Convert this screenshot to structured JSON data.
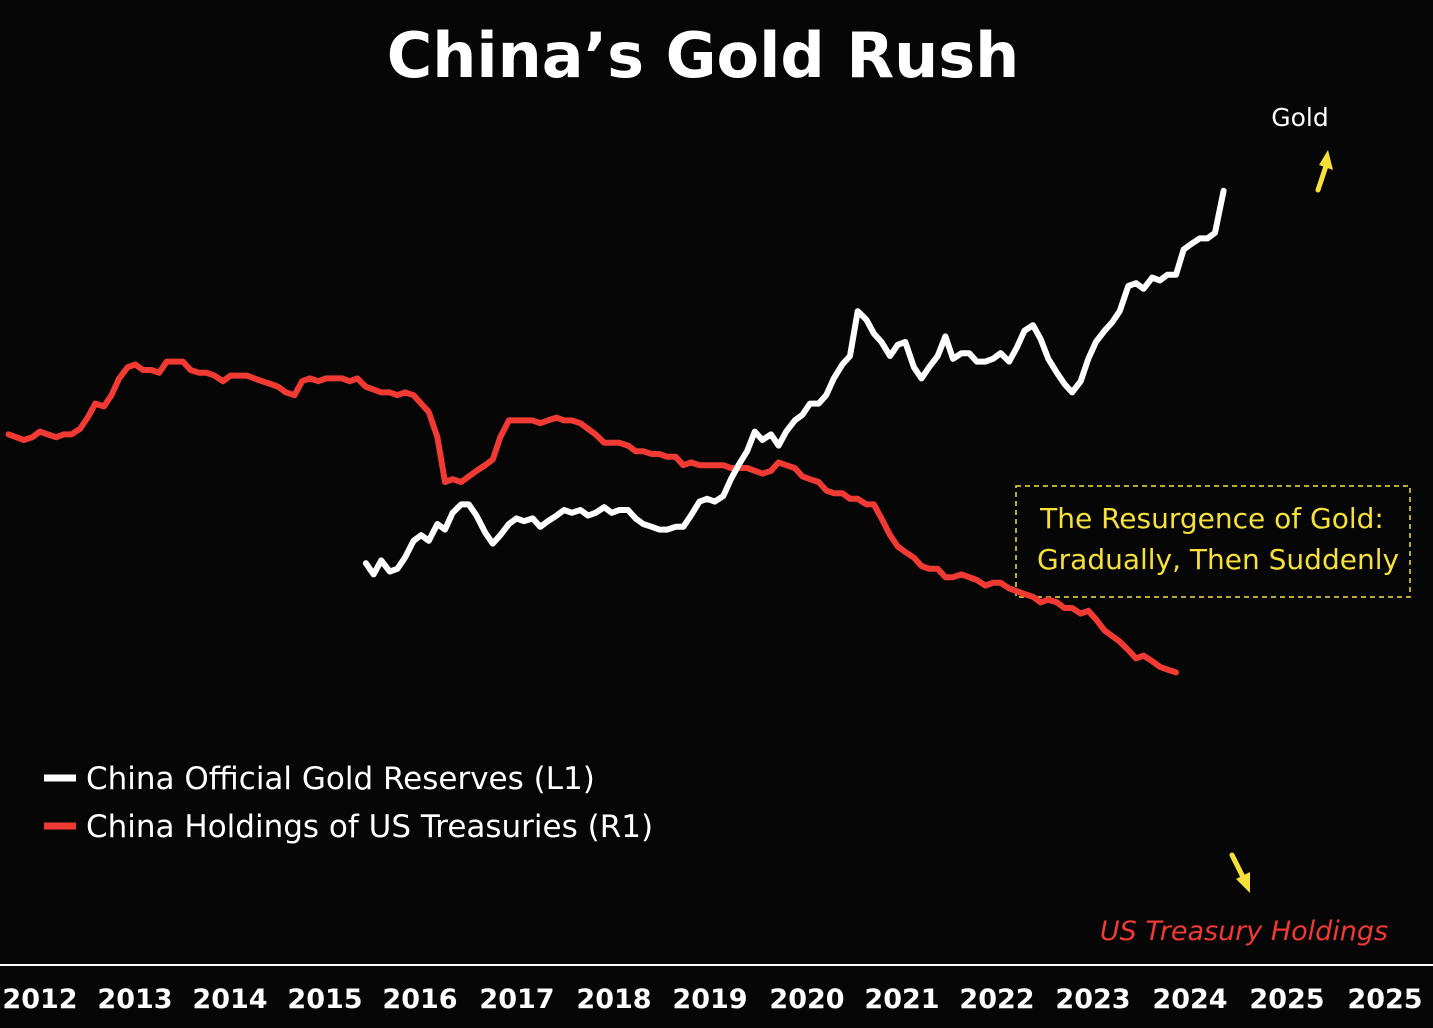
{
  "chart_data": {
    "type": "line",
    "title": "China’s Gold Rush",
    "x_tick_labels": [
      "2012",
      "2013",
      "2014",
      "2015",
      "2016",
      "2017",
      "2018",
      "2019",
      "2020",
      "2021",
      "2022",
      "2023",
      "2024",
      "2025",
      "2025"
    ],
    "xlim": [
      2011.6,
      2025.8
    ],
    "legend": {
      "placement": "bottom-left"
    },
    "grid": false,
    "colors": {
      "background": "#070607",
      "gold": "#ffffff",
      "treasuries": "#f03a33",
      "annotation": "#f5e13a"
    },
    "series": [
      {
        "name": "China Official Gold Reserves (L1)",
        "axis": "left",
        "color": "#ffffff",
        "points": [
          [
            2015.42,
            0.06
          ],
          [
            2015.5,
            0.02
          ],
          [
            2015.58,
            0.07
          ],
          [
            2015.67,
            0.03
          ],
          [
            2015.75,
            0.04
          ],
          [
            2015.83,
            0.08
          ],
          [
            2015.92,
            0.14
          ],
          [
            2016.0,
            0.16
          ],
          [
            2016.08,
            0.14
          ],
          [
            2016.17,
            0.2
          ],
          [
            2016.25,
            0.18
          ],
          [
            2016.33,
            0.24
          ],
          [
            2016.42,
            0.27
          ],
          [
            2016.5,
            0.27
          ],
          [
            2016.58,
            0.23
          ],
          [
            2016.67,
            0.17
          ],
          [
            2016.75,
            0.13
          ],
          [
            2016.83,
            0.16
          ],
          [
            2016.92,
            0.2
          ],
          [
            2017.0,
            0.22
          ],
          [
            2017.08,
            0.21
          ],
          [
            2017.17,
            0.22
          ],
          [
            2017.25,
            0.19
          ],
          [
            2017.33,
            0.21
          ],
          [
            2017.42,
            0.23
          ],
          [
            2017.5,
            0.25
          ],
          [
            2017.58,
            0.24
          ],
          [
            2017.67,
            0.25
          ],
          [
            2017.75,
            0.23
          ],
          [
            2017.83,
            0.24
          ],
          [
            2017.92,
            0.26
          ],
          [
            2018.0,
            0.24
          ],
          [
            2018.08,
            0.25
          ],
          [
            2018.17,
            0.25
          ],
          [
            2018.25,
            0.22
          ],
          [
            2018.33,
            0.2
          ],
          [
            2018.42,
            0.19
          ],
          [
            2018.5,
            0.18
          ],
          [
            2018.58,
            0.18
          ],
          [
            2018.67,
            0.19
          ],
          [
            2018.75,
            0.19
          ],
          [
            2018.83,
            0.23
          ],
          [
            2018.92,
            0.28
          ],
          [
            2019.0,
            0.29
          ],
          [
            2019.08,
            0.28
          ],
          [
            2019.17,
            0.3
          ],
          [
            2019.25,
            0.36
          ],
          [
            2019.33,
            0.41
          ],
          [
            2019.42,
            0.46
          ],
          [
            2019.5,
            0.53
          ],
          [
            2019.58,
            0.5
          ],
          [
            2019.67,
            0.52
          ],
          [
            2019.75,
            0.48
          ],
          [
            2019.83,
            0.53
          ],
          [
            2019.92,
            0.57
          ],
          [
            2020.0,
            0.59
          ],
          [
            2020.08,
            0.63
          ],
          [
            2020.17,
            0.63
          ],
          [
            2020.25,
            0.66
          ],
          [
            2020.33,
            0.72
          ],
          [
            2020.42,
            0.77
          ],
          [
            2020.5,
            0.8
          ],
          [
            2020.58,
            0.96
          ],
          [
            2020.67,
            0.93
          ],
          [
            2020.75,
            0.88
          ],
          [
            2020.83,
            0.85
          ],
          [
            2020.92,
            0.8
          ],
          [
            2021.0,
            0.84
          ],
          [
            2021.08,
            0.85
          ],
          [
            2021.17,
            0.76
          ],
          [
            2021.25,
            0.72
          ],
          [
            2021.33,
            0.76
          ],
          [
            2021.42,
            0.8
          ],
          [
            2021.5,
            0.87
          ],
          [
            2021.58,
            0.79
          ],
          [
            2021.67,
            0.81
          ],
          [
            2021.75,
            0.81
          ],
          [
            2021.83,
            0.78
          ],
          [
            2021.92,
            0.78
          ],
          [
            2022.0,
            0.79
          ],
          [
            2022.08,
            0.81
          ],
          [
            2022.17,
            0.78
          ],
          [
            2022.25,
            0.83
          ],
          [
            2022.33,
            0.89
          ],
          [
            2022.42,
            0.91
          ],
          [
            2022.5,
            0.86
          ],
          [
            2022.58,
            0.79
          ],
          [
            2022.67,
            0.74
          ],
          [
            2022.75,
            0.7
          ],
          [
            2022.83,
            0.67
          ],
          [
            2022.92,
            0.71
          ],
          [
            2023.0,
            0.79
          ],
          [
            2023.08,
            0.85
          ],
          [
            2023.17,
            0.89
          ],
          [
            2023.25,
            0.92
          ],
          [
            2023.33,
            0.96
          ],
          [
            2023.42,
            1.05
          ],
          [
            2023.5,
            1.06
          ],
          [
            2023.58,
            1.04
          ],
          [
            2023.67,
            1.08
          ],
          [
            2023.75,
            1.07
          ],
          [
            2023.83,
            1.09
          ],
          [
            2023.92,
            1.09
          ],
          [
            2024.0,
            1.18
          ],
          [
            2024.08,
            1.2
          ],
          [
            2024.17,
            1.22
          ],
          [
            2024.25,
            1.22
          ],
          [
            2024.33,
            1.24
          ],
          [
            2024.42,
            1.39
          ]
        ]
      },
      {
        "name": "China Holdings of US Treasuries (R1)",
        "axis": "right",
        "color": "#f03a33",
        "points": [
          [
            2011.67,
            0.52
          ],
          [
            2011.75,
            0.51
          ],
          [
            2011.83,
            0.5
          ],
          [
            2011.92,
            0.51
          ],
          [
            2012.0,
            0.53
          ],
          [
            2012.08,
            0.52
          ],
          [
            2012.17,
            0.51
          ],
          [
            2012.25,
            0.52
          ],
          [
            2012.33,
            0.52
          ],
          [
            2012.42,
            0.54
          ],
          [
            2012.5,
            0.58
          ],
          [
            2012.58,
            0.63
          ],
          [
            2012.67,
            0.62
          ],
          [
            2012.75,
            0.66
          ],
          [
            2012.83,
            0.72
          ],
          [
            2012.92,
            0.76
          ],
          [
            2013.0,
            0.77
          ],
          [
            2013.08,
            0.75
          ],
          [
            2013.17,
            0.75
          ],
          [
            2013.25,
            0.74
          ],
          [
            2013.33,
            0.78
          ],
          [
            2013.42,
            0.78
          ],
          [
            2013.5,
            0.78
          ],
          [
            2013.58,
            0.75
          ],
          [
            2013.67,
            0.74
          ],
          [
            2013.75,
            0.74
          ],
          [
            2013.83,
            0.73
          ],
          [
            2013.92,
            0.71
          ],
          [
            2014.0,
            0.73
          ],
          [
            2014.08,
            0.73
          ],
          [
            2014.17,
            0.73
          ],
          [
            2014.25,
            0.72
          ],
          [
            2014.33,
            0.71
          ],
          [
            2014.42,
            0.7
          ],
          [
            2014.5,
            0.69
          ],
          [
            2014.58,
            0.67
          ],
          [
            2014.67,
            0.66
          ],
          [
            2014.75,
            0.71
          ],
          [
            2014.83,
            0.72
          ],
          [
            2014.92,
            0.71
          ],
          [
            2015.0,
            0.72
          ],
          [
            2015.08,
            0.72
          ],
          [
            2015.17,
            0.72
          ],
          [
            2015.25,
            0.71
          ],
          [
            2015.33,
            0.72
          ],
          [
            2015.42,
            0.69
          ],
          [
            2015.5,
            0.68
          ],
          [
            2015.58,
            0.67
          ],
          [
            2015.67,
            0.67
          ],
          [
            2015.75,
            0.66
          ],
          [
            2015.83,
            0.67
          ],
          [
            2015.92,
            0.66
          ],
          [
            2016.0,
            0.63
          ],
          [
            2016.08,
            0.6
          ],
          [
            2016.17,
            0.51
          ],
          [
            2016.25,
            0.35
          ],
          [
            2016.33,
            0.36
          ],
          [
            2016.42,
            0.35
          ],
          [
            2016.5,
            0.37
          ],
          [
            2016.58,
            0.39
          ],
          [
            2016.67,
            0.41
          ],
          [
            2016.75,
            0.43
          ],
          [
            2016.83,
            0.51
          ],
          [
            2016.92,
            0.57
          ],
          [
            2017.0,
            0.57
          ],
          [
            2017.08,
            0.57
          ],
          [
            2017.17,
            0.57
          ],
          [
            2017.25,
            0.56
          ],
          [
            2017.33,
            0.57
          ],
          [
            2017.42,
            0.58
          ],
          [
            2017.5,
            0.57
          ],
          [
            2017.58,
            0.57
          ],
          [
            2017.67,
            0.56
          ],
          [
            2017.75,
            0.54
          ],
          [
            2017.83,
            0.52
          ],
          [
            2017.92,
            0.49
          ],
          [
            2018.0,
            0.49
          ],
          [
            2018.08,
            0.49
          ],
          [
            2018.17,
            0.48
          ],
          [
            2018.25,
            0.46
          ],
          [
            2018.33,
            0.46
          ],
          [
            2018.42,
            0.45
          ],
          [
            2018.5,
            0.45
          ],
          [
            2018.58,
            0.44
          ],
          [
            2018.67,
            0.44
          ],
          [
            2018.75,
            0.41
          ],
          [
            2018.83,
            0.42
          ],
          [
            2018.92,
            0.41
          ],
          [
            2019.0,
            0.41
          ],
          [
            2019.08,
            0.41
          ],
          [
            2019.17,
            0.41
          ],
          [
            2019.25,
            0.4
          ],
          [
            2019.33,
            0.4
          ],
          [
            2019.42,
            0.4
          ],
          [
            2019.5,
            0.39
          ],
          [
            2019.58,
            0.38
          ],
          [
            2019.67,
            0.39
          ],
          [
            2019.75,
            0.42
          ],
          [
            2019.83,
            0.41
          ],
          [
            2019.92,
            0.4
          ],
          [
            2020.0,
            0.37
          ],
          [
            2020.08,
            0.36
          ],
          [
            2020.17,
            0.35
          ],
          [
            2020.25,
            0.32
          ],
          [
            2020.33,
            0.31
          ],
          [
            2020.42,
            0.31
          ],
          [
            2020.5,
            0.29
          ],
          [
            2020.58,
            0.29
          ],
          [
            2020.67,
            0.27
          ],
          [
            2020.75,
            0.27
          ],
          [
            2020.83,
            0.22
          ],
          [
            2020.92,
            0.16
          ],
          [
            2021.0,
            0.12
          ],
          [
            2021.08,
            0.1
          ],
          [
            2021.17,
            0.08
          ],
          [
            2021.25,
            0.05
          ],
          [
            2021.33,
            0.04
          ],
          [
            2021.42,
            0.04
          ],
          [
            2021.5,
            0.01
          ],
          [
            2021.58,
            0.01
          ],
          [
            2021.67,
            0.02
          ],
          [
            2021.75,
            0.01
          ],
          [
            2021.83,
            0.0
          ],
          [
            2021.92,
            -0.02
          ],
          [
            2022.0,
            -0.01
          ],
          [
            2022.08,
            -0.01
          ],
          [
            2022.17,
            -0.03
          ],
          [
            2022.25,
            -0.04
          ],
          [
            2022.33,
            -0.05
          ],
          [
            2022.42,
            -0.06
          ],
          [
            2022.5,
            -0.08
          ],
          [
            2022.58,
            -0.07
          ],
          [
            2022.67,
            -0.08
          ],
          [
            2022.75,
            -0.1
          ],
          [
            2022.83,
            -0.1
          ],
          [
            2022.92,
            -0.12
          ],
          [
            2023.0,
            -0.11
          ],
          [
            2023.08,
            -0.14
          ],
          [
            2023.17,
            -0.18
          ],
          [
            2023.25,
            -0.2
          ],
          [
            2023.33,
            -0.22
          ],
          [
            2023.42,
            -0.25
          ],
          [
            2023.5,
            -0.28
          ],
          [
            2023.58,
            -0.27
          ],
          [
            2023.67,
            -0.29
          ],
          [
            2023.75,
            -0.31
          ],
          [
            2023.83,
            -0.32
          ],
          [
            2023.92,
            -0.33
          ]
        ]
      }
    ],
    "annotations": {
      "gold_label": "Gold",
      "ust_label": "US Treasury Holdings",
      "note_line1": "The Resurgence of Gold:",
      "note_line2": "Gradually, Then Suddenly"
    }
  }
}
